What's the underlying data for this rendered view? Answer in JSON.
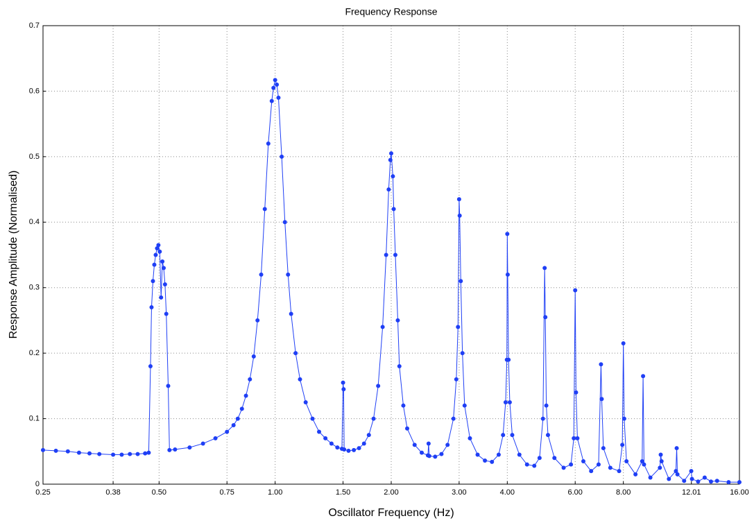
{
  "chart_data": {
    "type": "line",
    "title": "Frequency Response",
    "xlabel": "Oscillator Frequency (Hz)",
    "ylabel": "Response Amplitude (Normalised)",
    "xscale": "log",
    "grid": true,
    "color": "#1f3ff5",
    "xlim": [
      0.25,
      16
    ],
    "ylim": [
      0,
      0.7
    ],
    "xticks": [
      0.25,
      0.38,
      {
        "value": 0.5,
        "label": "0.50"
      },
      0.75,
      {
        "value": 1,
        "label": "1.00"
      },
      {
        "value": 1.5,
        "label": "1.50"
      },
      {
        "value": 2,
        "label": "2.00"
      },
      {
        "value": 3,
        "label": "3.00"
      },
      {
        "value": 4,
        "label": "4.00"
      },
      {
        "value": 6,
        "label": "6.00"
      },
      {
        "value": 8,
        "label": "8.00"
      },
      12.01,
      {
        "value": 16,
        "label": "16.00"
      }
    ],
    "yticks": [
      0,
      0.1,
      0.2,
      0.3,
      0.4,
      0.5,
      0.6,
      0.7
    ],
    "x": [
      0.25,
      0.27,
      0.29,
      0.31,
      0.33,
      0.35,
      0.38,
      0.4,
      0.42,
      0.44,
      0.46,
      0.47,
      0.475,
      0.478,
      0.482,
      0.486,
      0.49,
      0.494,
      0.498,
      0.502,
      0.506,
      0.51,
      0.514,
      0.518,
      0.522,
      0.528,
      0.532,
      0.55,
      0.6,
      0.65,
      0.7,
      0.75,
      0.78,
      0.8,
      0.82,
      0.84,
      0.86,
      0.88,
      0.9,
      0.92,
      0.94,
      0.96,
      0.98,
      0.99,
      1.0,
      1.01,
      1.02,
      1.04,
      1.06,
      1.08,
      1.1,
      1.13,
      1.16,
      1.2,
      1.25,
      1.3,
      1.35,
      1.4,
      1.45,
      1.49,
      1.5,
      1.505,
      1.51,
      1.55,
      1.6,
      1.65,
      1.7,
      1.75,
      1.8,
      1.85,
      1.9,
      1.94,
      1.97,
      1.99,
      2.0,
      2.02,
      2.03,
      2.05,
      2.08,
      2.1,
      2.15,
      2.2,
      2.3,
      2.4,
      2.49,
      2.5,
      2.51,
      2.6,
      2.7,
      2.8,
      2.9,
      2.95,
      2.98,
      3.0,
      3.01,
      3.03,
      3.06,
      3.1,
      3.2,
      3.35,
      3.5,
      3.65,
      3.8,
      3.9,
      3.96,
      3.99,
      4.0,
      4.01,
      4.03,
      4.06,
      4.12,
      4.3,
      4.5,
      4.7,
      4.85,
      4.95,
      5.0,
      5.02,
      5.05,
      5.1,
      5.3,
      5.6,
      5.85,
      5.95,
      6.0,
      6.03,
      6.08,
      6.3,
      6.6,
      6.9,
      7.0,
      7.03,
      7.1,
      7.4,
      7.8,
      7.95,
      8.0,
      8.04,
      8.15,
      8.6,
      8.95,
      9.0,
      9.05,
      9.4,
      9.95,
      10.0,
      10.05,
      10.5,
      10.95,
      11.0,
      11.05,
      11.5,
      12.0,
      12.05,
      12.5,
      13.0,
      13.5,
      14.0,
      15.0,
      16.0
    ],
    "values": [
      0.052,
      0.051,
      0.05,
      0.048,
      0.047,
      0.046,
      0.045,
      0.045,
      0.046,
      0.046,
      0.047,
      0.048,
      0.18,
      0.27,
      0.31,
      0.335,
      0.35,
      0.36,
      0.365,
      0.355,
      0.285,
      0.34,
      0.33,
      0.305,
      0.26,
      0.15,
      0.052,
      0.053,
      0.056,
      0.062,
      0.07,
      0.08,
      0.09,
      0.1,
      0.115,
      0.135,
      0.16,
      0.195,
      0.25,
      0.32,
      0.42,
      0.52,
      0.585,
      0.605,
      0.617,
      0.61,
      0.59,
      0.5,
      0.4,
      0.32,
      0.26,
      0.2,
      0.16,
      0.125,
      0.1,
      0.08,
      0.07,
      0.062,
      0.056,
      0.054,
      0.155,
      0.145,
      0.053,
      0.051,
      0.052,
      0.055,
      0.062,
      0.075,
      0.1,
      0.15,
      0.24,
      0.35,
      0.45,
      0.495,
      0.505,
      0.47,
      0.42,
      0.35,
      0.25,
      0.18,
      0.12,
      0.085,
      0.06,
      0.048,
      0.044,
      0.062,
      0.043,
      0.042,
      0.046,
      0.06,
      0.1,
      0.16,
      0.24,
      0.435,
      0.41,
      0.31,
      0.2,
      0.12,
      0.07,
      0.045,
      0.036,
      0.034,
      0.045,
      0.075,
      0.125,
      0.19,
      0.382,
      0.32,
      0.19,
      0.125,
      0.075,
      0.045,
      0.03,
      0.028,
      0.04,
      0.1,
      0.33,
      0.255,
      0.12,
      0.075,
      0.04,
      0.025,
      0.03,
      0.07,
      0.296,
      0.14,
      0.07,
      0.035,
      0.02,
      0.03,
      0.183,
      0.13,
      0.055,
      0.025,
      0.02,
      0.06,
      0.215,
      0.1,
      0.035,
      0.015,
      0.035,
      0.165,
      0.03,
      0.01,
      0.025,
      0.045,
      0.035,
      0.008,
      0.02,
      0.055,
      0.015,
      0.005,
      0.02,
      0.008,
      0.004,
      0.01,
      0.004,
      0.005,
      0.003,
      0.003
    ]
  }
}
